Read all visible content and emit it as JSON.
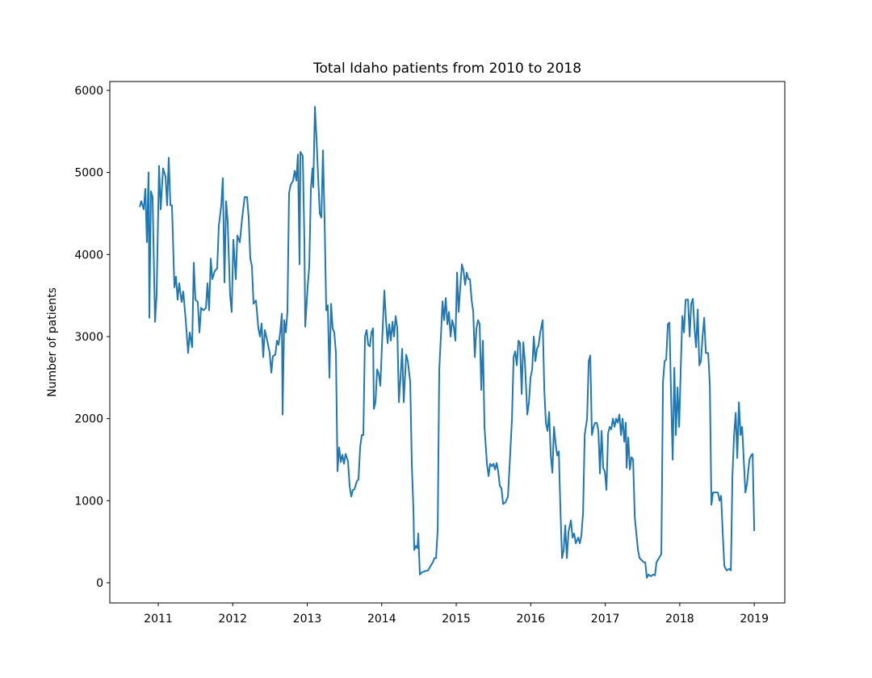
{
  "chart_data": {
    "type": "line",
    "title": "Total Idaho patients from 2010 to 2018",
    "ylabel": "Number of patients",
    "color": "#1f77b4",
    "xlim": [
      2010.35,
      2019.41
    ],
    "xticks": [
      2011,
      2012,
      2013,
      2014,
      2015,
      2016,
      2017,
      2018,
      2019
    ],
    "ylim": [
      -246,
      6108
    ],
    "yticks": [
      0,
      1000,
      2000,
      3000,
      4000,
      5000,
      6000
    ],
    "grid": false,
    "x": [
      2010.751,
      2010.772,
      2010.805,
      2010.827,
      2010.848,
      2010.87,
      2010.881,
      2010.902,
      2010.924,
      2010.957,
      2010.978,
      2011.011,
      2011.033,
      2011.065,
      2011.098,
      2011.119,
      2011.141,
      2011.163,
      2011.184,
      2011.217,
      2011.238,
      2011.26,
      2011.282,
      2011.314,
      2011.336,
      2011.369,
      2011.401,
      2011.423,
      2011.455,
      2011.477,
      2011.499,
      2011.531,
      2011.553,
      2011.575,
      2011.607,
      2011.64,
      2011.661,
      2011.683,
      2011.705,
      2011.726,
      2011.759,
      2011.791,
      2011.813,
      2011.846,
      2011.867,
      2011.889,
      2011.911,
      2011.932,
      2011.965,
      2011.986,
      2012.008,
      2012.041,
      2012.062,
      2012.095,
      2012.127,
      2012.16,
      2012.192,
      2012.214,
      2012.236,
      2012.257,
      2012.279,
      2012.312,
      2012.344,
      2012.366,
      2012.388,
      2012.409,
      2012.431,
      2012.463,
      2012.496,
      2012.518,
      2012.539,
      2012.572,
      2012.593,
      2012.615,
      2012.637,
      2012.659,
      2012.669,
      2012.691,
      2012.713,
      2012.734,
      2012.756,
      2012.778,
      2012.81,
      2012.832,
      2012.854,
      2012.875,
      2012.897,
      2012.908,
      2012.94,
      2012.962,
      2012.973,
      2013.005,
      2013.027,
      2013.049,
      2013.07,
      2013.081,
      2013.103,
      2013.125,
      2013.146,
      2013.168,
      2013.19,
      2013.211,
      2013.233,
      2013.255,
      2013.276,
      2013.298,
      2013.32,
      2013.341,
      2013.363,
      2013.385,
      2013.406,
      2013.428,
      2013.45,
      2013.472,
      2013.493,
      2013.515,
      2013.547,
      2013.569,
      2013.591,
      2013.612,
      2013.634,
      2013.667,
      2013.688,
      2013.71,
      2013.732,
      2013.753,
      2013.775,
      2013.797,
      2013.818,
      2013.84,
      2013.862,
      2013.883,
      2013.894,
      2013.916,
      2013.938,
      2013.959,
      2013.981,
      2014.003,
      2014.035,
      2014.057,
      2014.079,
      2014.1,
      2014.122,
      2014.144,
      2014.165,
      2014.187,
      2014.209,
      2014.23,
      2014.252,
      2014.274,
      2014.295,
      2014.328,
      2014.35,
      2014.382,
      2014.404,
      2014.425,
      2014.436,
      2014.458,
      2014.48,
      2014.49,
      2014.512,
      2014.545,
      2014.577,
      2014.621,
      2014.653,
      2014.686,
      2014.707,
      2014.729,
      2014.751,
      2014.772,
      2014.794,
      2014.816,
      2014.837,
      2014.859,
      2014.881,
      2014.902,
      2014.924,
      2014.946,
      2014.967,
      2014.989,
      2015.011,
      2015.032,
      2015.054,
      2015.076,
      2015.098,
      2015.119,
      2015.141,
      2015.163,
      2015.184,
      2015.206,
      2015.228,
      2015.249,
      2015.271,
      2015.293,
      2015.314,
      2015.336,
      2015.358,
      2015.379,
      2015.412,
      2015.434,
      2015.455,
      2015.477,
      2015.499,
      2015.52,
      2015.542,
      2015.564,
      2015.585,
      2015.607,
      2015.629,
      2015.661,
      2015.694,
      2015.726,
      2015.748,
      2015.77,
      2015.791,
      2015.813,
      2015.835,
      2015.856,
      2015.878,
      2015.9,
      2015.921,
      2015.954,
      2015.976,
      2015.997,
      2016.019,
      2016.041,
      2016.062,
      2016.084,
      2016.106,
      2016.127,
      2016.16,
      2016.182,
      2016.203,
      2016.225,
      2016.247,
      2016.268,
      2016.29,
      2016.312,
      2016.333,
      2016.355,
      2016.377,
      2016.398,
      2016.42,
      2016.442,
      2016.463,
      2016.485,
      2016.507,
      2016.539,
      2016.561,
      2016.583,
      2016.604,
      2016.637,
      2016.659,
      2016.68,
      2016.702,
      2016.724,
      2016.756,
      2016.778,
      2016.799,
      2016.821,
      2016.843,
      2016.864,
      2016.886,
      2016.908,
      2016.929,
      2016.951,
      2016.973,
      2016.995,
      2017.016,
      2017.038,
      2017.06,
      2017.081,
      2017.103,
      2017.125,
      2017.146,
      2017.168,
      2017.19,
      2017.211,
      2017.233,
      2017.255,
      2017.276,
      2017.287,
      2017.309,
      2017.331,
      2017.352,
      2017.374,
      2017.396,
      2017.439,
      2017.461,
      2017.515,
      2017.537,
      2017.558,
      2017.58,
      2017.612,
      2017.645,
      2017.667,
      2017.688,
      2017.721,
      2017.753,
      2017.775,
      2017.797,
      2017.818,
      2017.84,
      2017.862,
      2017.883,
      2017.905,
      2017.927,
      2017.948,
      2017.97,
      2017.992,
      2018.013,
      2018.035,
      2018.057,
      2018.079,
      2018.111,
      2018.133,
      2018.154,
      2018.176,
      2018.198,
      2018.219,
      2018.241,
      2018.263,
      2018.284,
      2018.306,
      2018.328,
      2018.35,
      2018.382,
      2018.404,
      2018.425,
      2018.447,
      2018.48,
      2018.512,
      2018.534,
      2018.555,
      2018.577,
      2018.599,
      2018.631,
      2018.664,
      2018.686,
      2018.707,
      2018.729,
      2018.751,
      2018.772,
      2018.794,
      2018.816,
      2018.837,
      2018.859,
      2018.881,
      2018.902,
      2018.935,
      2018.957,
      2018.978,
      2019.0
    ],
    "values": [
      4580,
      4650,
      4550,
      4800,
      4150,
      5000,
      3230,
      4770,
      4700,
      3180,
      3500,
      5080,
      4550,
      5050,
      4950,
      4600,
      5180,
      4600,
      4600,
      3600,
      3730,
      3450,
      3650,
      3420,
      3550,
      3200,
      2800,
      3050,
      2870,
      3900,
      3450,
      3420,
      3050,
      3350,
      3320,
      3350,
      3650,
      3320,
      3950,
      3700,
      3800,
      3830,
      4350,
      4600,
      4930,
      3660,
      4650,
      4400,
      3500,
      3300,
      4180,
      3700,
      4230,
      4150,
      4450,
      4700,
      4700,
      4450,
      3950,
      3860,
      3400,
      3440,
      3100,
      3000,
      3160,
      2750,
      3080,
      2950,
      2800,
      2560,
      2760,
      2780,
      2950,
      2900,
      3050,
      3280,
      2050,
      3200,
      3050,
      3300,
      4750,
      4850,
      4900,
      5020,
      4900,
      5220,
      3880,
      5250,
      5200,
      4150,
      3120,
      3600,
      3850,
      4800,
      5050,
      4820,
      5800,
      5400,
      4950,
      4500,
      4450,
      5270,
      4400,
      3320,
      3380,
      2500,
      3400,
      3100,
      3050,
      2800,
      1360,
      1650,
      1470,
      1560,
      1450,
      1570,
      1480,
      1180,
      1050,
      1130,
      1140,
      1240,
      1260,
      1650,
      1800,
      1800,
      3000,
      3080,
      2900,
      2880,
      3050,
      3100,
      2120,
      2200,
      2600,
      2550,
      2400,
      2900,
      3560,
      3200,
      2920,
      3150,
      2950,
      3180,
      3000,
      3250,
      3100,
      2200,
      2500,
      2850,
      2200,
      2780,
      2700,
      2450,
      1430,
      900,
      400,
      450,
      420,
      600,
      100,
      130,
      140,
      150,
      200,
      250,
      300,
      300,
      650,
      2600,
      3000,
      3430,
      3200,
      3470,
      3150,
      3300,
      3000,
      3200,
      3120,
      2950,
      3780,
      3300,
      3600,
      3880,
      3800,
      3630,
      3780,
      3700,
      3700,
      3450,
      3300,
      2750,
      3100,
      3200,
      3150,
      2350,
      2950,
      1900,
      1450,
      1300,
      1450,
      1420,
      1450,
      1380,
      1460,
      1350,
      1180,
      1150,
      960,
      980,
      1050,
      1600,
      2000,
      2750,
      2820,
      2650,
      2950,
      2920,
      2300,
      2930,
      2700,
      2050,
      2200,
      2500,
      2600,
      3000,
      2700,
      2850,
      2900,
      3050,
      3200,
      2350,
      1950,
      1850,
      2080,
      1560,
      1340,
      1900,
      1700,
      1550,
      1600,
      900,
      300,
      400,
      700,
      300,
      620,
      760,
      550,
      600,
      480,
      550,
      480,
      580,
      850,
      1800,
      2000,
      2700,
      2770,
      1800,
      1900,
      1950,
      1950,
      1850,
      1330,
      1850,
      1400,
      1350,
      1130,
      1820,
      1900,
      1870,
      2000,
      1900,
      2000,
      1950,
      2050,
      1800,
      2000,
      1720,
      1950,
      1400,
      1770,
      1380,
      1530,
      1500,
      800,
      400,
      300,
      250,
      250,
      60,
      100,
      80,
      100,
      90,
      250,
      300,
      350,
      2450,
      2700,
      2720,
      3150,
      3170,
      2300,
      1500,
      2620,
      1800,
      2380,
      1900,
      2600,
      3250,
      3050,
      3450,
      3450,
      3000,
      3400,
      3460,
      3100,
      2870,
      3330,
      2650,
      2700,
      3000,
      3230,
      2800,
      2800,
      2400,
      950,
      1100,
      1100,
      1100,
      1000,
      1060,
      600,
      200,
      150,
      170,
      150,
      1300,
      1800,
      2070,
      1520,
      2200,
      1800,
      1900,
      1500,
      1100,
      1200,
      1500,
      1550,
      1570,
      630
    ]
  }
}
